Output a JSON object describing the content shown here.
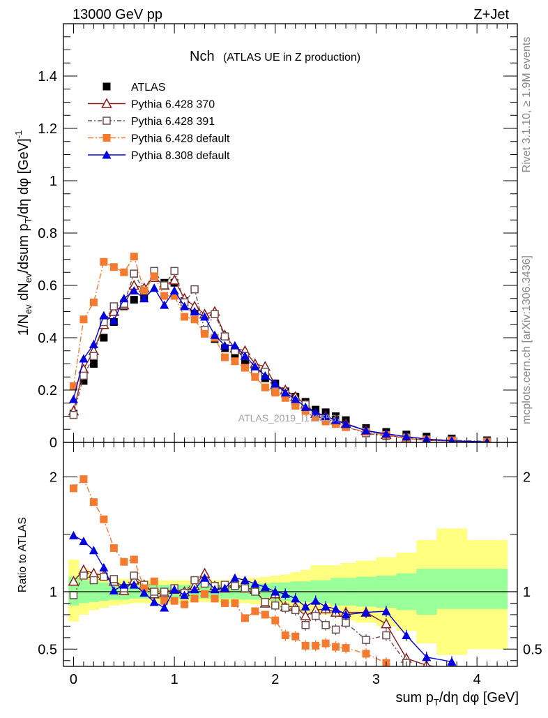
{
  "header": {
    "left": "13000 GeV pp",
    "right": "Z+Jet"
  },
  "side": {
    "rivet": "Rivet 3.1.10, ≥ 1.9M events",
    "mcplots": "mcplots.cern.ch [arXiv:1306.3436]"
  },
  "watermark": "ATLAS_2019_I1736531",
  "chart_data": [
    {
      "type": "scatter",
      "title": "Nch",
      "subtitle": "(ATLAS UE in Z production)",
      "ylabel": "1/N_ev dN_ev/dsum p_T/dη dφ [GeV]^-1",
      "xlabel": "sum p_T/dη dφ [GeV]",
      "xlim": [
        -0.1,
        4.4
      ],
      "ylim": [
        0,
        1.6
      ],
      "yticks": [
        0.2,
        0.4,
        0.6,
        0.8,
        1,
        1.2,
        1.4
      ],
      "xticks": [
        0,
        1,
        2,
        3,
        4
      ],
      "legend_position": "top-left",
      "x": [
        0.0,
        0.1,
        0.2,
        0.3,
        0.4,
        0.5,
        0.6,
        0.7,
        0.8,
        0.9,
        1.0,
        1.1,
        1.2,
        1.3,
        1.4,
        1.5,
        1.6,
        1.7,
        1.8,
        1.9,
        2.0,
        2.1,
        2.2,
        2.3,
        2.4,
        2.5,
        2.6,
        2.7,
        2.9,
        3.1,
        3.3,
        3.5,
        3.75,
        4.1
      ],
      "series": [
        {
          "name": "ATLAS",
          "color": "#000000",
          "marker": "filled-square",
          "values": [
            0.11,
            0.235,
            0.3,
            0.4,
            0.46,
            0.52,
            0.545,
            0.555,
            0.655,
            0.61,
            0.61,
            0.54,
            0.5,
            0.425,
            0.395,
            0.36,
            0.33,
            0.3,
            0.27,
            0.245,
            0.225,
            0.195,
            0.175,
            0.155,
            0.125,
            0.115,
            0.1,
            0.085,
            0.055,
            0.04,
            0.03,
            0.022,
            0.015,
            0.008
          ]
        },
        {
          "name": "Pythia 6.428 370",
          "color": "#8b1a1a",
          "marker": "open-triangle",
          "values": [
            0.12,
            0.28,
            0.35,
            0.45,
            0.5,
            0.525,
            0.6,
            0.59,
            0.63,
            0.6,
            0.62,
            0.55,
            0.52,
            0.49,
            0.5,
            0.41,
            0.36,
            0.35,
            0.3,
            0.29,
            0.22,
            0.2,
            0.175,
            0.145,
            0.11,
            0.1,
            0.085,
            0.072,
            0.045,
            0.03,
            0.015,
            0.008,
            0.005,
            0.002
          ]
        },
        {
          "name": "Pythia 6.428 391",
          "color": "#6b4e4e",
          "marker": "open-square",
          "values": [
            0.105,
            0.255,
            0.33,
            0.46,
            0.52,
            0.53,
            0.645,
            0.58,
            0.655,
            0.6,
            0.655,
            0.535,
            0.585,
            0.43,
            0.49,
            0.405,
            0.35,
            0.33,
            0.27,
            0.27,
            0.195,
            0.185,
            0.155,
            0.145,
            0.1,
            0.09,
            0.075,
            0.06,
            0.035,
            0.025,
            0.019,
            0.012,
            0.008,
            0.004
          ]
        },
        {
          "name": "Pythia 6.428 default",
          "color": "#f47a30",
          "marker": "filled-square",
          "values": [
            0.215,
            0.47,
            0.535,
            0.69,
            0.67,
            0.65,
            0.71,
            0.58,
            0.635,
            0.56,
            0.56,
            0.48,
            0.47,
            0.415,
            0.4,
            0.325,
            0.31,
            0.285,
            0.25,
            0.21,
            0.19,
            0.17,
            0.14,
            0.12,
            0.095,
            0.08,
            0.07,
            0.058,
            0.04,
            0.028,
            0.015,
            0.01,
            0.006,
            0.002
          ]
        },
        {
          "name": "Pythia 8.308 default",
          "color": "#0000e0",
          "marker": "filled-triangle",
          "values": [
            0.165,
            0.32,
            0.375,
            0.485,
            0.465,
            0.55,
            0.58,
            0.55,
            0.59,
            0.525,
            0.58,
            0.52,
            0.5,
            0.48,
            0.41,
            0.37,
            0.37,
            0.33,
            0.29,
            0.255,
            0.225,
            0.19,
            0.165,
            0.135,
            0.115,
            0.1,
            0.085,
            0.07,
            0.045,
            0.033,
            0.022,
            0.013,
            0.006,
            0.002
          ]
        }
      ]
    },
    {
      "type": "line",
      "ylabel": "Ratio to ATLAS",
      "xlabel": "sum p_T/dη dφ [GeV]",
      "xlim": [
        -0.1,
        4.4
      ],
      "ylim": [
        0.35,
        2.3
      ],
      "yticks": [
        0.5,
        1,
        2
      ],
      "x": [
        0.0,
        0.1,
        0.2,
        0.3,
        0.4,
        0.5,
        0.6,
        0.7,
        0.8,
        0.9,
        1.0,
        1.1,
        1.2,
        1.3,
        1.4,
        1.5,
        1.6,
        1.7,
        1.8,
        1.9,
        2.0,
        2.1,
        2.2,
        2.3,
        2.4,
        2.5,
        2.6,
        2.7,
        2.9,
        3.1,
        3.3,
        3.5,
        3.75
      ],
      "bands": {
        "bin_edges": [
          -0.05,
          0.05,
          0.15,
          0.25,
          0.35,
          0.45,
          0.55,
          0.65,
          0.75,
          0.85,
          0.95,
          1.05,
          1.15,
          1.25,
          1.35,
          1.45,
          1.55,
          1.65,
          1.75,
          1.85,
          1.95,
          2.05,
          2.15,
          2.25,
          2.35,
          2.45,
          2.55,
          2.65,
          2.8,
          3.0,
          3.2,
          3.4,
          3.6,
          3.9,
          4.3
        ],
        "green": [
          [
            0.88,
            1.13
          ],
          [
            0.9,
            1.1
          ],
          [
            0.91,
            1.09
          ],
          [
            0.92,
            1.08
          ],
          [
            0.93,
            1.07
          ],
          [
            0.93,
            1.07
          ],
          [
            0.94,
            1.06
          ],
          [
            0.94,
            1.06
          ],
          [
            0.94,
            1.06
          ],
          [
            0.94,
            1.06
          ],
          [
            0.94,
            1.06
          ],
          [
            0.94,
            1.06
          ],
          [
            0.94,
            1.06
          ],
          [
            0.94,
            1.06
          ],
          [
            0.94,
            1.06
          ],
          [
            0.94,
            1.06
          ],
          [
            0.94,
            1.06
          ],
          [
            0.93,
            1.07
          ],
          [
            0.93,
            1.07
          ],
          [
            0.93,
            1.07
          ],
          [
            0.92,
            1.08
          ],
          [
            0.92,
            1.08
          ],
          [
            0.91,
            1.09
          ],
          [
            0.91,
            1.09
          ],
          [
            0.9,
            1.1
          ],
          [
            0.9,
            1.1
          ],
          [
            0.88,
            1.12
          ],
          [
            0.88,
            1.12
          ],
          [
            0.87,
            1.13
          ],
          [
            0.86,
            1.14
          ],
          [
            0.84,
            1.16
          ],
          [
            0.8,
            1.2
          ],
          [
            0.85,
            1.2
          ],
          [
            0.85,
            1.2
          ]
        ],
        "yellow": [
          [
            0.74,
            1.28
          ],
          [
            0.8,
            1.2
          ],
          [
            0.84,
            1.16
          ],
          [
            0.86,
            1.14
          ],
          [
            0.88,
            1.12
          ],
          [
            0.89,
            1.11
          ],
          [
            0.9,
            1.1
          ],
          [
            0.9,
            1.1
          ],
          [
            0.9,
            1.1
          ],
          [
            0.9,
            1.1
          ],
          [
            0.9,
            1.1
          ],
          [
            0.91,
            1.1
          ],
          [
            0.91,
            1.1
          ],
          [
            0.91,
            1.1
          ],
          [
            0.91,
            1.1
          ],
          [
            0.9,
            1.1
          ],
          [
            0.9,
            1.11
          ],
          [
            0.9,
            1.12
          ],
          [
            0.89,
            1.12
          ],
          [
            0.88,
            1.13
          ],
          [
            0.87,
            1.14
          ],
          [
            0.86,
            1.15
          ],
          [
            0.84,
            1.17
          ],
          [
            0.82,
            1.19
          ],
          [
            0.82,
            1.23
          ],
          [
            0.8,
            1.23
          ],
          [
            0.78,
            1.23
          ],
          [
            0.75,
            1.25
          ],
          [
            0.73,
            1.27
          ],
          [
            0.7,
            1.3
          ],
          [
            0.66,
            1.34
          ],
          [
            0.55,
            1.45
          ],
          [
            0.45,
            1.55
          ],
          [
            0.5,
            1.45
          ]
        ]
      },
      "series": [
        {
          "name": "Pythia 6.428 370",
          "color": "#8b1a1a",
          "marker": "open-triangle",
          "values": [
            1.09,
            1.19,
            1.16,
            1.14,
            1.09,
            1.01,
            1.1,
            1.06,
            0.98,
            0.99,
            1.02,
            1.0,
            1.05,
            1.16,
            1.05,
            1.03,
            1.07,
            1.03,
            1.02,
            0.9,
            0.98,
            0.87,
            0.87,
            0.79,
            0.84,
            0.85,
            0.82,
            0.82,
            0.82,
            0.72,
            0.42,
            0.36,
            0.33
          ]
        },
        {
          "name": "Pythia 6.428 391",
          "color": "#6b4e4e",
          "marker": "open-square",
          "values": [
            0.97,
            1.14,
            1.1,
            1.13,
            1.11,
            1.03,
            1.14,
            1.06,
            1.0,
            1.0,
            1.03,
            0.99,
            1.1,
            1.07,
            1.05,
            1.06,
            1.05,
            1.03,
            1.0,
            0.91,
            0.88,
            0.86,
            0.84,
            0.71,
            0.79,
            0.71,
            0.67,
            0.73,
            0.58,
            0.62,
            0.38,
            null,
            null
          ]
        },
        {
          "name": "Pythia 6.428 default",
          "color": "#f47a30",
          "marker": "filled-square",
          "values": [
            1.9,
            1.98,
            1.78,
            1.63,
            1.38,
            1.26,
            1.28,
            1.03,
            1.09,
            0.92,
            0.92,
            0.89,
            0.94,
            0.98,
            0.94,
            0.9,
            0.9,
            0.77,
            0.83,
            0.8,
            0.75,
            0.62,
            0.61,
            0.53,
            0.53,
            0.55,
            0.52,
            0.51,
            0.46,
            0.38,
            null,
            null,
            null
          ]
        },
        {
          "name": "Pythia 8.308 default",
          "color": "#0000e0",
          "marker": "filled-triangle",
          "values": [
            1.49,
            1.44,
            1.36,
            1.21,
            1.01,
            1.06,
            1.06,
            0.99,
            0.91,
            0.86,
            1.02,
            0.97,
            1.02,
            1.12,
            1.02,
            1.03,
            1.12,
            1.1,
            1.07,
            1.04,
            1.0,
            0.98,
            0.94,
            0.87,
            0.92,
            0.87,
            0.85,
            0.8,
            0.82,
            0.83,
            0.62,
            0.43,
            0.39
          ]
        }
      ]
    }
  ]
}
